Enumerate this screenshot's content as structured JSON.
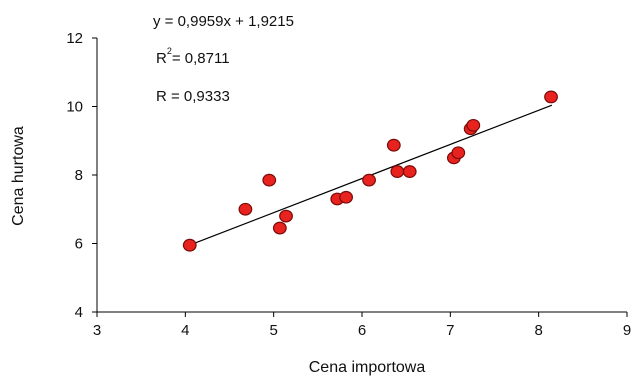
{
  "chart_data": {
    "type": "scatter",
    "title": "",
    "xlabel": "Cena importowa",
    "ylabel": "Cena hurtowa",
    "xlim": [
      3,
      9
    ],
    "ylim": [
      4,
      12
    ],
    "x_ticks": [
      3,
      4,
      5,
      6,
      7,
      8,
      9
    ],
    "y_ticks": [
      4,
      6,
      8,
      10,
      12
    ],
    "grid": false,
    "legend": "none",
    "marker_color": "#e8221e",
    "marker_edge_color": "#7a0a08",
    "trendline": {
      "type": "linear",
      "slope": 0.9959,
      "intercept": 1.9215,
      "x_range": [
        4.05,
        8.15
      ]
    },
    "annotations": {
      "equation": "y = 0,9959x + 1,9215",
      "r2_prefix": "R",
      "r2_exp": "2",
      "r2_value": "= 0,8711",
      "r": "R = 0,9333"
    },
    "points": [
      {
        "x": 4.05,
        "y": 5.95
      },
      {
        "x": 4.68,
        "y": 7.0
      },
      {
        "x": 4.95,
        "y": 7.85
      },
      {
        "x": 5.07,
        "y": 6.45
      },
      {
        "x": 5.14,
        "y": 6.8
      },
      {
        "x": 5.72,
        "y": 7.3
      },
      {
        "x": 5.82,
        "y": 7.35
      },
      {
        "x": 6.08,
        "y": 7.85
      },
      {
        "x": 6.36,
        "y": 8.87
      },
      {
        "x": 6.4,
        "y": 8.1
      },
      {
        "x": 6.54,
        "y": 8.1
      },
      {
        "x": 7.04,
        "y": 8.5
      },
      {
        "x": 7.09,
        "y": 8.65
      },
      {
        "x": 7.23,
        "y": 9.35
      },
      {
        "x": 7.26,
        "y": 9.45
      },
      {
        "x": 8.14,
        "y": 10.28
      }
    ]
  }
}
